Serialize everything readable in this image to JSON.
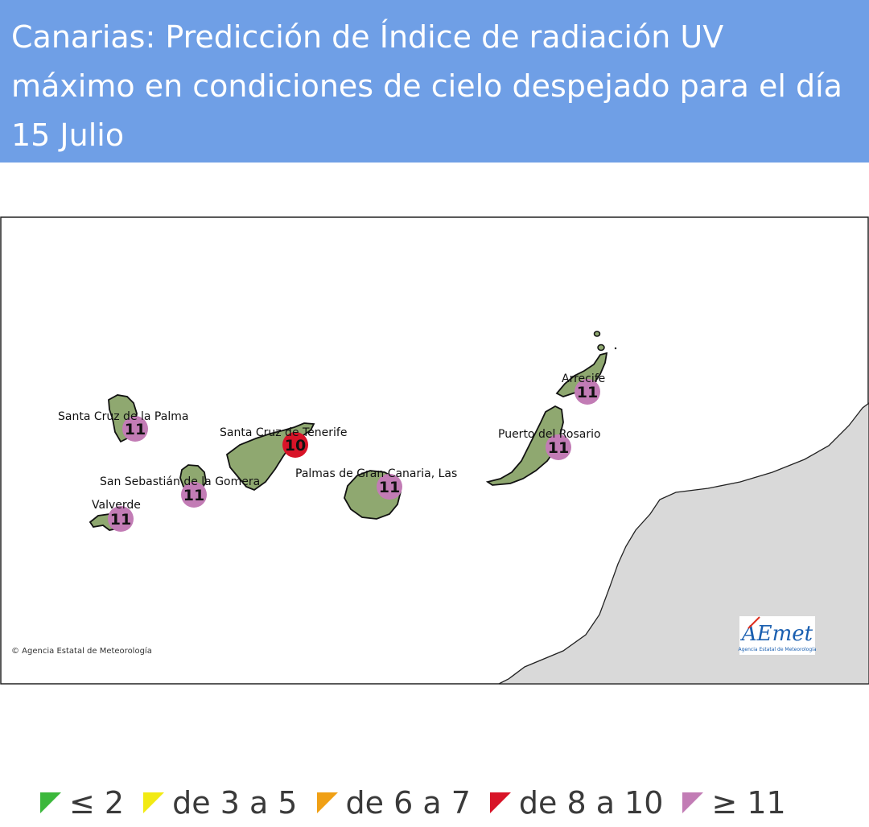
{
  "header": {
    "title": "Canarias: Predicción de Índice de radiación UV máximo en condiciones de cielo despejado para el día 15 Julio"
  },
  "map": {
    "copyright": "© Agencia Estatal de Meteorología",
    "logo": {
      "word": "AEmet",
      "caption": "Agencia Estatal de Meteorología"
    },
    "colors": {
      "sea": "#ffffff",
      "land_africa": "#d9d9d9",
      "island": "#8fa870",
      "uv_le2": "#3cb83c",
      "uv_3_5": "#f2ea13",
      "uv_6_7": "#f0a015",
      "uv_8_10": "#d81428",
      "uv_ge11": "#c27cb5"
    },
    "stations": [
      {
        "name": "Santa Cruz de la Palma",
        "uv": "11",
        "level": "uv_ge11"
      },
      {
        "name": "Santa Cruz de Tenerife",
        "uv": "10",
        "level": "uv_8_10"
      },
      {
        "name": "San Sebastián de la Gomera",
        "uv": "11",
        "level": "uv_ge11"
      },
      {
        "name": "Valverde",
        "uv": "11",
        "level": "uv_ge11"
      },
      {
        "name": "Palmas de Gran Canaria, Las",
        "uv": "11",
        "level": "uv_ge11"
      },
      {
        "name": "Puerto del Rosario",
        "uv": "11",
        "level": "uv_ge11"
      },
      {
        "name": "Arrecife",
        "uv": "11",
        "level": "uv_ge11"
      }
    ]
  },
  "legend": {
    "items": [
      {
        "label": "≤ 2",
        "color": "#3cb83c"
      },
      {
        "label": "de 3 a 5",
        "color": "#f2ea13"
      },
      {
        "label": "de 6 a 7",
        "color": "#f0a015"
      },
      {
        "label": "de 8 a 10",
        "color": "#d81428"
      },
      {
        "label": "≥ 11",
        "color": "#c27cb5"
      }
    ]
  }
}
